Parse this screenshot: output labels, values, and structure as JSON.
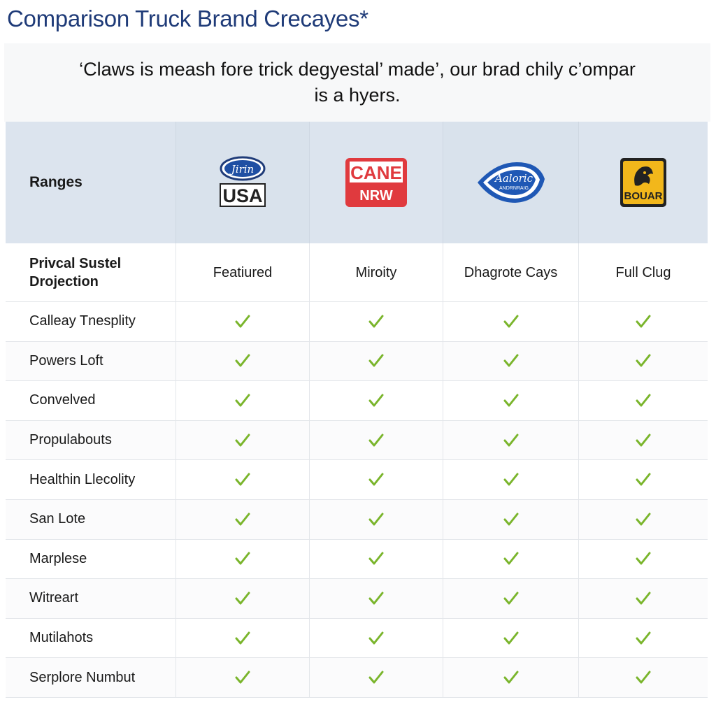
{
  "page": {
    "title": "Comparison Truck Brand Crecayes*",
    "subtitle": "‘Claws is meash fore trick degyestal’ made’, our brad chily c’ompar is a hyers."
  },
  "table": {
    "header_label": "Ranges",
    "brands": [
      {
        "logo_top": "Jirin",
        "logo_bottom": "USA",
        "icon": "oval-badge-logo"
      },
      {
        "logo_top": "CANE",
        "logo_bottom": "NRW",
        "icon": "red-shield-logo"
      },
      {
        "logo_top": "Aaloric",
        "logo_bottom": "ANDRNRAIG",
        "icon": "blue-diamond-logo"
      },
      {
        "logo_top": "",
        "logo_bottom": "BOUAR",
        "icon": "gold-animal-logo"
      }
    ],
    "subheader_label": "Privcal Sustel Drojection",
    "subheader_values": [
      "Featiured",
      "Miroity",
      "Dhagrote Cays",
      "Full Clug"
    ],
    "rows": [
      "Calleay Tnesplity",
      "Powers Loft",
      "Convelved",
      "Propulabouts",
      "Healthin Llecolity",
      "San Lote",
      "Marplese",
      "Witreart",
      "Mutilahots",
      "Serplore Numbut"
    ],
    "check_icon": "check-icon",
    "colors": {
      "title": "#1f3b78",
      "header_bg": "#dce4ee",
      "check": "#7ab52c",
      "logo_red": "#e03a3e",
      "logo_blue": "#1f58b5",
      "logo_gold": "#f2b71b"
    }
  }
}
